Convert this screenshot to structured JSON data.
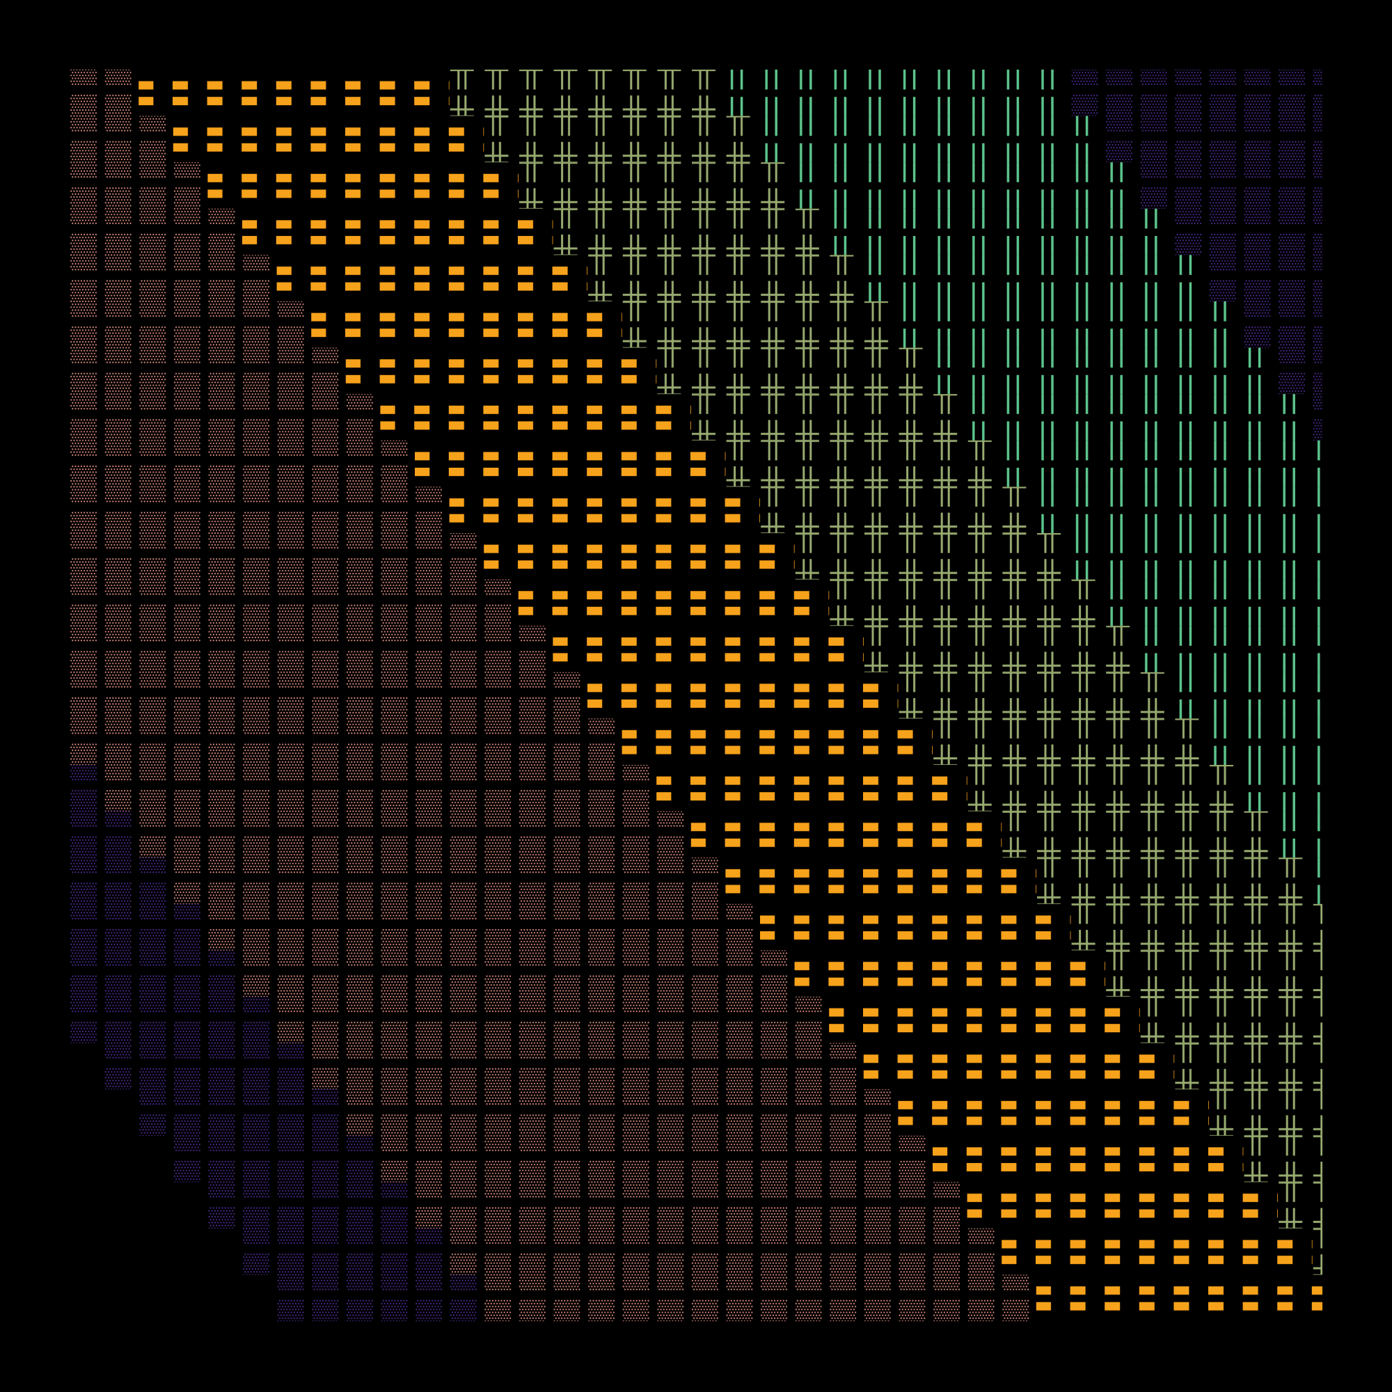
{
  "title": "",
  "background_color": "#000000",
  "palette": {
    "deep_dots": "#4a2a8c",
    "rose_dots": "#d98c80",
    "orange_dashes": "#f7a21b",
    "sage_crosses": "#98ab70",
    "green_bars": "#5cc48c"
  },
  "pattern_order": [
    "deep_dots",
    "rose_dots",
    "orange_dashes",
    "sage_crosses",
    "green_bars",
    "deep_dots",
    "rose_dots",
    "orange_dashes"
  ],
  "pattern_glyphs": {
    "deep_dots": "stipple",
    "rose_dots": "stipple",
    "orange_dashes": "dash",
    "sage_crosses": "double-cross",
    "green_bars": "bar-pair"
  }
}
